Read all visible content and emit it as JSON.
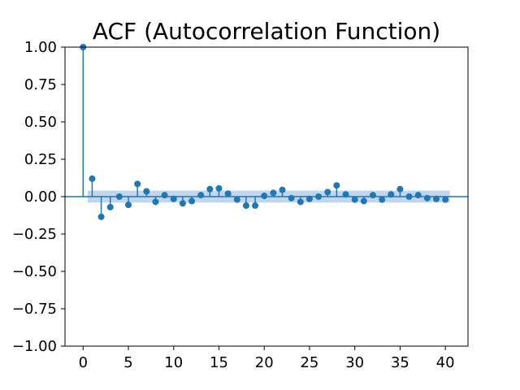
{
  "chart_data": {
    "type": "stem",
    "title": "ACF (Autocorrelation Function)",
    "xlabel": "",
    "ylabel": "",
    "xlim": [
      -2,
      42.5
    ],
    "ylim": [
      -1.0,
      1.0
    ],
    "xticks": [
      0,
      5,
      10,
      15,
      20,
      25,
      30,
      35,
      40
    ],
    "yticks": [
      1.0,
      0.75,
      0.5,
      0.25,
      0.0,
      -0.25,
      -0.5,
      -0.75,
      -1.0
    ],
    "ytick_labels": [
      "1.00",
      "0.75",
      "0.50",
      "0.25",
      "0.00",
      "−0.25",
      "−0.50",
      "−0.75",
      "−1.00"
    ],
    "grid": false,
    "legend": "none",
    "colors": {
      "stem": "#1f77b4",
      "confidence_band": "#aec7e8"
    },
    "confidence_band": {
      "x_from": 0.5,
      "x_to": 40.5,
      "lower": -0.04,
      "upper": 0.04
    },
    "lags": [
      0,
      1,
      2,
      3,
      4,
      5,
      6,
      7,
      8,
      9,
      10,
      11,
      12,
      13,
      14,
      15,
      16,
      17,
      18,
      19,
      20,
      21,
      22,
      23,
      24,
      25,
      26,
      27,
      28,
      29,
      30,
      31,
      32,
      33,
      34,
      35,
      36,
      37,
      38,
      39,
      40
    ],
    "values": [
      1.0,
      0.12,
      -0.135,
      -0.07,
      0.0,
      -0.055,
      0.085,
      0.035,
      -0.035,
      0.01,
      -0.015,
      -0.045,
      -0.03,
      0.01,
      0.05,
      0.055,
      0.02,
      -0.02,
      -0.06,
      -0.06,
      0.005,
      0.025,
      0.045,
      -0.01,
      -0.035,
      -0.015,
      0.0,
      0.03,
      0.075,
      0.015,
      -0.02,
      -0.03,
      0.01,
      -0.02,
      0.015,
      0.05,
      0.0,
      0.01,
      -0.01,
      -0.015,
      -0.02
    ]
  }
}
